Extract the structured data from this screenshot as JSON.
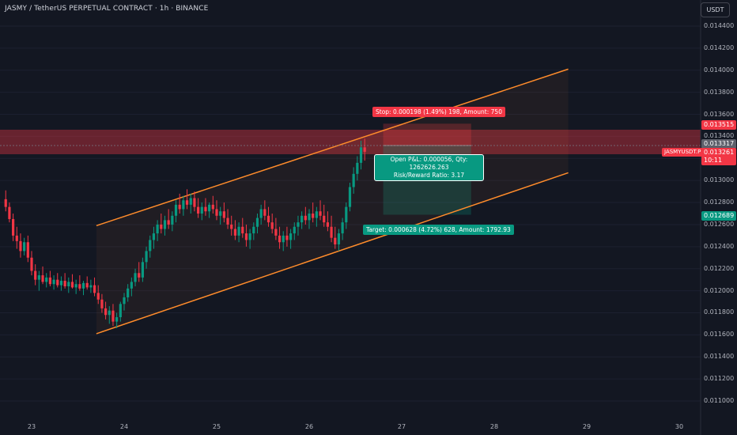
{
  "header": {
    "title": "JASMY / TetherUS PERPETUAL CONTRACT · 1h · BINANCE",
    "currency_button": "USDT"
  },
  "price_axis": {
    "ticks": [
      "0.014400",
      "0.014200",
      "0.014000",
      "0.013800",
      "0.013600",
      "0.013400",
      "0.013200",
      "0.013000",
      "0.012800",
      "0.012600",
      "0.012400",
      "0.012200",
      "0.012000",
      "0.011800",
      "0.011600",
      "0.011400",
      "0.011200",
      "0.011000"
    ],
    "labels": {
      "stop": "0.013515",
      "current": "0.013317",
      "symbol_price": "0.013261",
      "countdown": "10:11",
      "target": "0.012689"
    },
    "symbol_tag": "JASMYUSDT.P"
  },
  "time_axis": {
    "ticks": [
      "23",
      "24",
      "25",
      "26",
      "27",
      "28",
      "29",
      "30"
    ]
  },
  "position_tool": {
    "stop_text": "Stop: 0.000198 (1.49%) 198, Amount: 750",
    "pnl_line1": "Open P&L: 0.000056, Qty: 1262626.263",
    "pnl_line2": "Risk/Reward Ratio: 3.17",
    "target_text": "Target: 0.000628 (4.72%) 628, Amount: 1792.93"
  },
  "colors": {
    "background": "#131722",
    "up": "#089981",
    "down": "#f23645",
    "channel": "#ff8c2b",
    "text": "#b2b5be"
  },
  "chart_data": {
    "type": "candlestick",
    "symbol": "JASMYUSDT.P",
    "interval": "1h",
    "x_range_days": [
      22.7,
      30.2
    ],
    "ylim": [
      0.01096,
      0.01451
    ],
    "channel": {
      "upper": [
        [
          23.7,
          0.01259
        ],
        [
          28.8,
          0.01401
        ]
      ],
      "lower": [
        [
          23.7,
          0.01161
        ],
        [
          28.8,
          0.01307
        ]
      ]
    },
    "position": {
      "entry": 0.013317,
      "stop": 0.013515,
      "target": 0.012689,
      "start_day": 26.8,
      "end_day": 27.75
    },
    "candles": [
      [
        22.72,
        0.01283,
        0.01291,
        0.01272,
        0.01276
      ],
      [
        22.76,
        0.01276,
        0.0128,
        0.01262,
        0.01265
      ],
      [
        22.8,
        0.01265,
        0.0127,
        0.01245,
        0.0125
      ],
      [
        22.84,
        0.0125,
        0.01258,
        0.01238,
        0.01245
      ],
      [
        22.88,
        0.01245,
        0.01252,
        0.0123,
        0.01236
      ],
      [
        22.92,
        0.01236,
        0.01248,
        0.01232,
        0.01244
      ],
      [
        22.96,
        0.01244,
        0.0125,
        0.01226,
        0.0123
      ],
      [
        23.0,
        0.0123,
        0.01236,
        0.01214,
        0.01218
      ],
      [
        23.04,
        0.01218,
        0.01224,
        0.01205,
        0.0121
      ],
      [
        23.08,
        0.0121,
        0.01218,
        0.012,
        0.01214
      ],
      [
        23.12,
        0.01214,
        0.01222,
        0.01206,
        0.01208
      ],
      [
        23.16,
        0.01208,
        0.01216,
        0.01203,
        0.01212
      ],
      [
        23.2,
        0.01212,
        0.01218,
        0.01204,
        0.01206
      ],
      [
        23.24,
        0.01206,
        0.01214,
        0.01201,
        0.0121
      ],
      [
        23.28,
        0.0121,
        0.01216,
        0.01203,
        0.01205
      ],
      [
        23.32,
        0.01205,
        0.01213,
        0.012,
        0.01209
      ],
      [
        23.36,
        0.01209,
        0.01216,
        0.01202,
        0.01204
      ],
      [
        23.4,
        0.01204,
        0.01212,
        0.01198,
        0.01208
      ],
      [
        23.44,
        0.01208,
        0.01215,
        0.01202,
        0.01203
      ],
      [
        23.48,
        0.01203,
        0.0121,
        0.01197,
        0.01206
      ],
      [
        23.52,
        0.01206,
        0.01214,
        0.012,
        0.01202
      ],
      [
        23.56,
        0.01202,
        0.01209,
        0.01196,
        0.01207
      ],
      [
        23.6,
        0.01207,
        0.01213,
        0.01201,
        0.01203
      ],
      [
        23.64,
        0.01203,
        0.0121,
        0.01198,
        0.01205
      ],
      [
        23.68,
        0.01205,
        0.01212,
        0.01195,
        0.01198
      ],
      [
        23.72,
        0.01198,
        0.01205,
        0.01188,
        0.01192
      ],
      [
        23.76,
        0.01192,
        0.01197,
        0.0118,
        0.01184
      ],
      [
        23.8,
        0.01184,
        0.0119,
        0.01174,
        0.01178
      ],
      [
        23.84,
        0.01178,
        0.01186,
        0.0117,
        0.01182
      ],
      [
        23.88,
        0.01182,
        0.01188,
        0.01168,
        0.01172
      ],
      [
        23.92,
        0.01172,
        0.0118,
        0.01166,
        0.01176
      ],
      [
        23.96,
        0.01176,
        0.0119,
        0.01172,
        0.01188
      ],
      [
        24.0,
        0.01188,
        0.01198,
        0.01182,
        0.01194
      ],
      [
        24.04,
        0.01194,
        0.01206,
        0.0119,
        0.01202
      ],
      [
        24.08,
        0.01202,
        0.01212,
        0.01195,
        0.01208
      ],
      [
        24.12,
        0.01208,
        0.0122,
        0.01204,
        0.01216
      ],
      [
        24.16,
        0.01216,
        0.01226,
        0.01208,
        0.01212
      ],
      [
        24.2,
        0.01212,
        0.0123,
        0.01208,
        0.01226
      ],
      [
        24.24,
        0.01226,
        0.0124,
        0.0122,
        0.01236
      ],
      [
        24.28,
        0.01236,
        0.0125,
        0.0123,
        0.01246
      ],
      [
        24.32,
        0.01246,
        0.01258,
        0.01238,
        0.01252
      ],
      [
        24.36,
        0.01252,
        0.01264,
        0.01245,
        0.0126
      ],
      [
        24.4,
        0.0126,
        0.0127,
        0.01252,
        0.01256
      ],
      [
        24.44,
        0.01256,
        0.01268,
        0.0125,
        0.01264
      ],
      [
        24.48,
        0.01264,
        0.01274,
        0.01256,
        0.0126
      ],
      [
        24.52,
        0.0126,
        0.01272,
        0.01254,
        0.01268
      ],
      [
        24.56,
        0.01268,
        0.01282,
        0.01262,
        0.01278
      ],
      [
        24.6,
        0.01278,
        0.01288,
        0.0127,
        0.01274
      ],
      [
        24.64,
        0.01274,
        0.01286,
        0.01268,
        0.01282
      ],
      [
        24.68,
        0.01282,
        0.01292,
        0.01274,
        0.01278
      ],
      [
        24.72,
        0.01278,
        0.01288,
        0.0127,
        0.01284
      ],
      [
        24.76,
        0.01284,
        0.0129,
        0.01272,
        0.01276
      ],
      [
        24.8,
        0.01276,
        0.01284,
        0.01266,
        0.0127
      ],
      [
        24.84,
        0.0127,
        0.0128,
        0.01264,
        0.01276
      ],
      [
        24.88,
        0.01276,
        0.01284,
        0.01268,
        0.01272
      ],
      [
        24.92,
        0.01272,
        0.0128,
        0.01266,
        0.01278
      ],
      [
        24.96,
        0.01278,
        0.01286,
        0.0127,
        0.01274
      ],
      [
        25.0,
        0.01274,
        0.01282,
        0.01264,
        0.01268
      ],
      [
        25.04,
        0.01268,
        0.01276,
        0.0126,
        0.01272
      ],
      [
        25.08,
        0.01272,
        0.0128,
        0.01262,
        0.01266
      ],
      [
        25.12,
        0.01266,
        0.01274,
        0.01256,
        0.0126
      ],
      [
        25.16,
        0.0126,
        0.01268,
        0.0125,
        0.01256
      ],
      [
        25.2,
        0.01256,
        0.01264,
        0.01246,
        0.0125
      ],
      [
        25.24,
        0.0125,
        0.01262,
        0.01244,
        0.01258
      ],
      [
        25.28,
        0.01258,
        0.01266,
        0.01248,
        0.01252
      ],
      [
        25.32,
        0.01252,
        0.0126,
        0.0124,
        0.01246
      ],
      [
        25.36,
        0.01246,
        0.01256,
        0.01238,
        0.01252
      ],
      [
        25.4,
        0.01252,
        0.01262,
        0.01246,
        0.01258
      ],
      [
        25.44,
        0.01258,
        0.0127,
        0.01252,
        0.01266
      ],
      [
        25.48,
        0.01266,
        0.01278,
        0.0126,
        0.01274
      ],
      [
        25.52,
        0.01274,
        0.01282,
        0.01264,
        0.01268
      ],
      [
        25.56,
        0.01268,
        0.01276,
        0.01258,
        0.01262
      ],
      [
        25.6,
        0.01262,
        0.0127,
        0.01252,
        0.01256
      ],
      [
        25.64,
        0.01256,
        0.01266,
        0.01246,
        0.0125
      ],
      [
        25.68,
        0.0125,
        0.01258,
        0.01238,
        0.01244
      ],
      [
        25.72,
        0.01244,
        0.01254,
        0.01236,
        0.0125
      ],
      [
        25.76,
        0.0125,
        0.01258,
        0.0124,
        0.01246
      ],
      [
        25.8,
        0.01246,
        0.01256,
        0.01238,
        0.01252
      ],
      [
        25.84,
        0.01252,
        0.01262,
        0.01246,
        0.01258
      ],
      [
        25.88,
        0.01258,
        0.01268,
        0.0125,
        0.01262
      ],
      [
        25.92,
        0.01262,
        0.01272,
        0.01256,
        0.01268
      ],
      [
        25.96,
        0.01268,
        0.01276,
        0.0126,
        0.01264
      ],
      [
        26.0,
        0.01264,
        0.01274,
        0.01256,
        0.0127
      ],
      [
        26.04,
        0.0127,
        0.0128,
        0.01262,
        0.01266
      ],
      [
        26.08,
        0.01266,
        0.01276,
        0.01258,
        0.01272
      ],
      [
        26.12,
        0.01272,
        0.01282,
        0.01264,
        0.01268
      ],
      [
        26.16,
        0.01268,
        0.01278,
        0.01258,
        0.01262
      ],
      [
        26.2,
        0.01262,
        0.01272,
        0.01254,
        0.01258
      ],
      [
        26.24,
        0.01258,
        0.01268,
        0.01244,
        0.01248
      ],
      [
        26.28,
        0.01248,
        0.01258,
        0.01238,
        0.01242
      ],
      [
        26.32,
        0.01242,
        0.01256,
        0.01236,
        0.01252
      ],
      [
        26.36,
        0.01252,
        0.01266,
        0.01246,
        0.01262
      ],
      [
        26.4,
        0.01262,
        0.0128,
        0.01256,
        0.01276
      ],
      [
        26.44,
        0.01276,
        0.01298,
        0.01272,
        0.01294
      ],
      [
        26.48,
        0.01294,
        0.01312,
        0.01288,
        0.01306
      ],
      [
        26.52,
        0.01306,
        0.01322,
        0.013,
        0.01316
      ],
      [
        26.56,
        0.01316,
        0.01336,
        0.0131,
        0.0133
      ],
      [
        26.6,
        0.0133,
        0.01338,
        0.01318,
        0.01326
      ]
    ]
  }
}
